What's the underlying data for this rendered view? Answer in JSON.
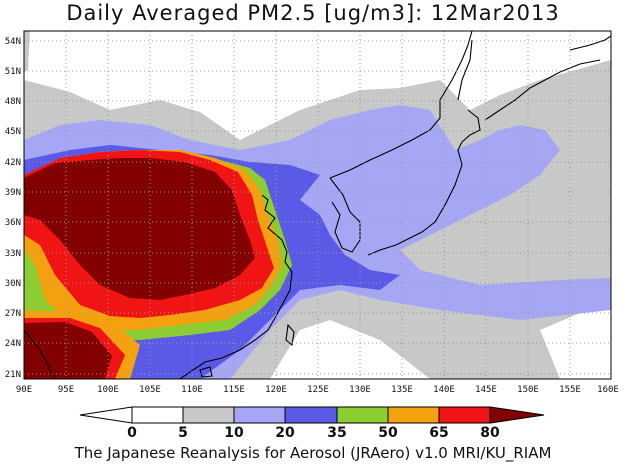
{
  "title": "Daily Averaged PM2.5 [ug/m3]: 12Mar2013",
  "footer": "The Japanese Reanalysis for Aerosol (JRAero) v1.0 MRI/KU_RIAM",
  "lon_labels": [
    "90E",
    "95E",
    "100E",
    "105E",
    "110E",
    "115E",
    "120E",
    "125E",
    "130E",
    "135E",
    "140E",
    "145E",
    "150E",
    "155E",
    "160E"
  ],
  "lat_labels": [
    "21N",
    "24N",
    "27N",
    "30N",
    "33N",
    "36N",
    "39N",
    "42N",
    "45N",
    "48N",
    "51N",
    "54N"
  ],
  "colorbar": {
    "labels": [
      "0",
      "5",
      "10",
      "20",
      "35",
      "50",
      "65",
      "80"
    ],
    "colors": [
      "#ffffff",
      "#c8c8c8",
      "#a5a7f5",
      "#5a5ae6",
      "#8ccd32",
      "#f5a00f",
      "#f01414",
      "#820000"
    ]
  }
}
